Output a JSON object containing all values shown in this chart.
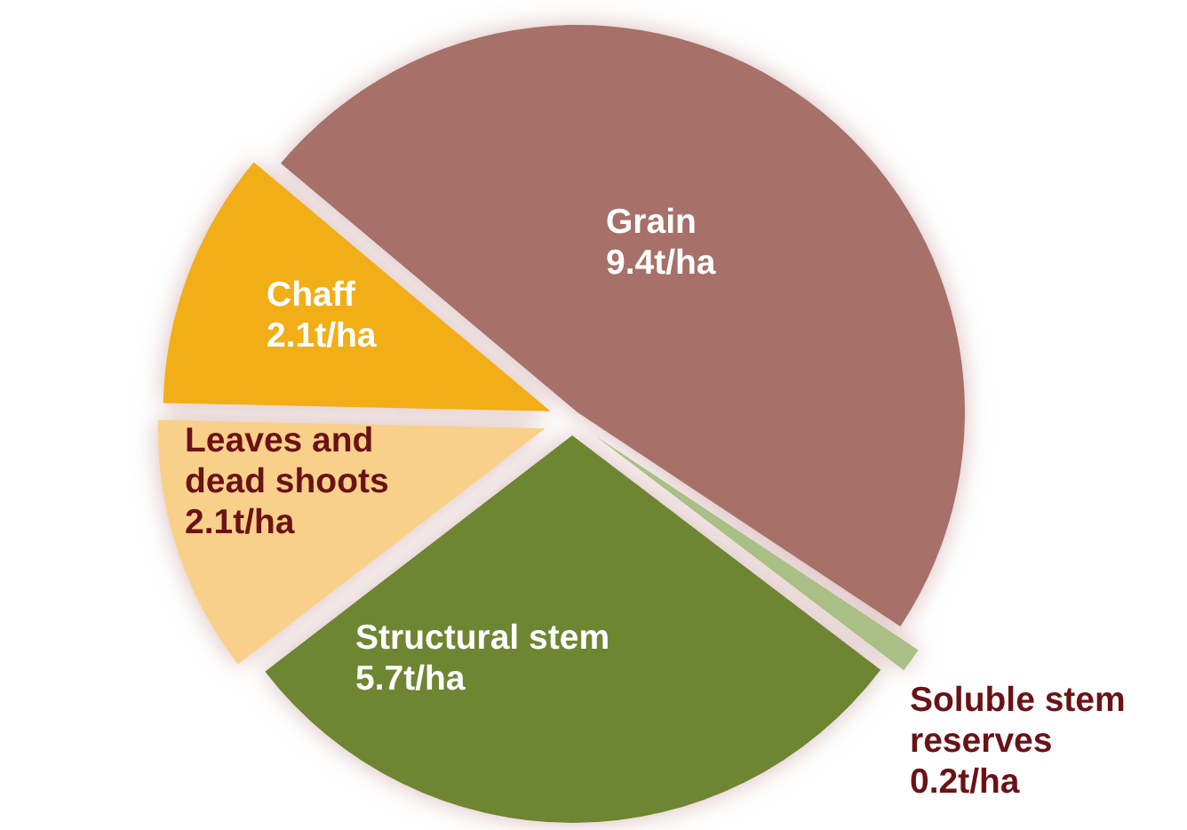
{
  "chart_data": {
    "type": "pie",
    "categories": [
      "Grain",
      "Soluble stem reserves",
      "Structural stem",
      "Leaves and dead shoots",
      "Chaff"
    ],
    "values": [
      9.4,
      0.2,
      5.7,
      2.1,
      2.1
    ],
    "colors": [
      "#a77068",
      "#a9bf85",
      "#6e8530",
      "#f8d08a",
      "#f2ae17"
    ],
    "value_labels": [
      "9.4t/ha",
      "0.2t/ha",
      "5.7t/ha",
      "2.1t/ha",
      "2.1t/ha"
    ]
  }
}
